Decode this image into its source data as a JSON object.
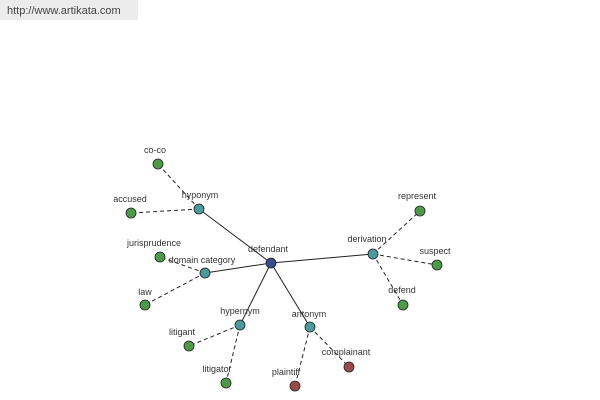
{
  "header": {
    "url": "http://www.artikata.com"
  },
  "nodes": [
    {
      "label": "defendant"
    },
    {
      "label": "hyponym"
    },
    {
      "label": "co-co"
    },
    {
      "label": "accused"
    },
    {
      "label": "domain category"
    },
    {
      "label": "jurisprudence"
    },
    {
      "label": "law"
    },
    {
      "label": "hypernym"
    },
    {
      "label": "litigant"
    },
    {
      "label": "litigator"
    },
    {
      "label": "antonym"
    },
    {
      "label": "plaintiff"
    },
    {
      "label": "complainant"
    },
    {
      "label": "derivation"
    },
    {
      "label": "represent"
    },
    {
      "label": "suspect"
    },
    {
      "label": "defend"
    }
  ]
}
